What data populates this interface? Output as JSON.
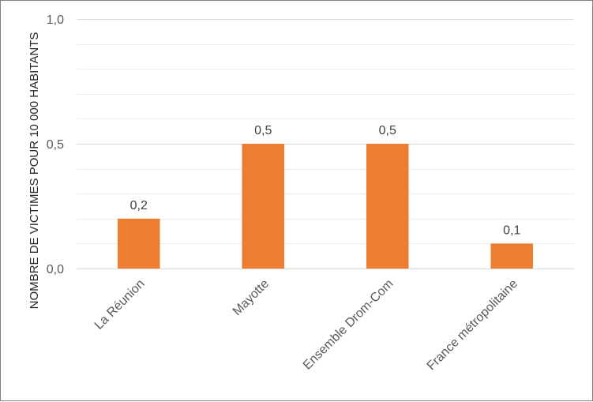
{
  "chart_data": {
    "type": "bar",
    "title": "",
    "xlabel": "",
    "ylabel": "NOMBRE DE VICTIMES POUR 10 000 HABITANTS",
    "categories": [
      "La Réunion",
      "Mayotte",
      "Ensemble Drom-Com",
      "France métropolitaine"
    ],
    "values": [
      0.2,
      0.5,
      0.5,
      0.1
    ],
    "value_labels": [
      "0,2",
      "0,5",
      "0,5",
      "0,1"
    ],
    "ylim": [
      0,
      1
    ],
    "yticks": [
      0,
      0.5,
      1
    ],
    "ytick_labels": [
      "0,0",
      "0,5",
      "1,0"
    ],
    "minor_gridlines": true,
    "legend": "none",
    "bar_color": "#ED7D31",
    "grid_color": "#D9D9D9"
  }
}
